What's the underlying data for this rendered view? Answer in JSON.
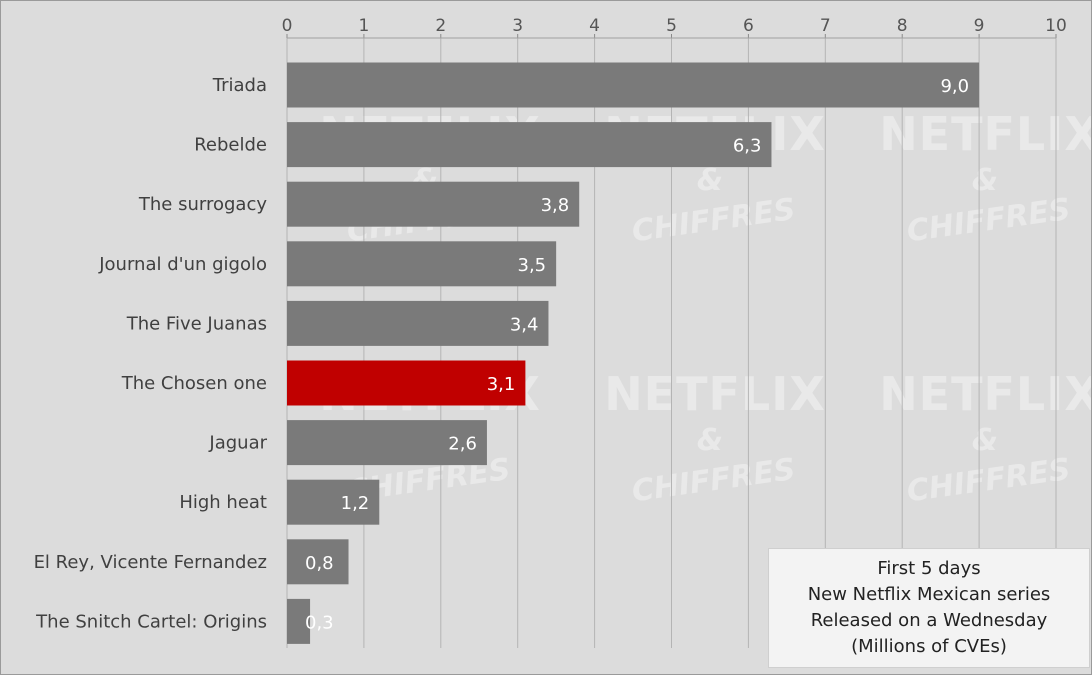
{
  "chart_data": {
    "type": "bar",
    "orientation": "horizontal",
    "categories": [
      "Triada",
      "Rebelde",
      "The surrogacy",
      "Journal d'un gigolo",
      "The Five Juanas",
      "The Chosen one",
      "Jaguar",
      "High heat",
      "El Rey, Vicente Fernandez",
      "The Snitch Cartel: Origins"
    ],
    "values": [
      9.0,
      6.3,
      3.8,
      3.5,
      3.4,
      3.1,
      2.6,
      1.2,
      0.8,
      0.3
    ],
    "value_labels": [
      "9,0",
      "6,3",
      "3,8",
      "3,5",
      "3,4",
      "3,1",
      "2,6",
      "1,2",
      "0,8",
      "0,3"
    ],
    "highlight_index": 5,
    "colors": {
      "bar": "#7a7a7a",
      "highlight": "#c00000",
      "grid": "#b4b4b4",
      "background": "#dcdcdc"
    },
    "xlim": [
      0,
      10
    ],
    "xticks": [
      "0",
      "1",
      "2",
      "3",
      "4",
      "5",
      "6",
      "7",
      "8",
      "9",
      "10"
    ],
    "x_axis_position": "top",
    "grid": true,
    "legend": {
      "placement": "bottom-right",
      "lines": [
        "First 5 days",
        "New Netflix Mexican series",
        "Released on a Wednesday",
        "(Millions of CVEs)"
      ]
    }
  },
  "watermark": {
    "title": "NETFLIX",
    "amp": "&",
    "sub": "CHIFFRES"
  }
}
